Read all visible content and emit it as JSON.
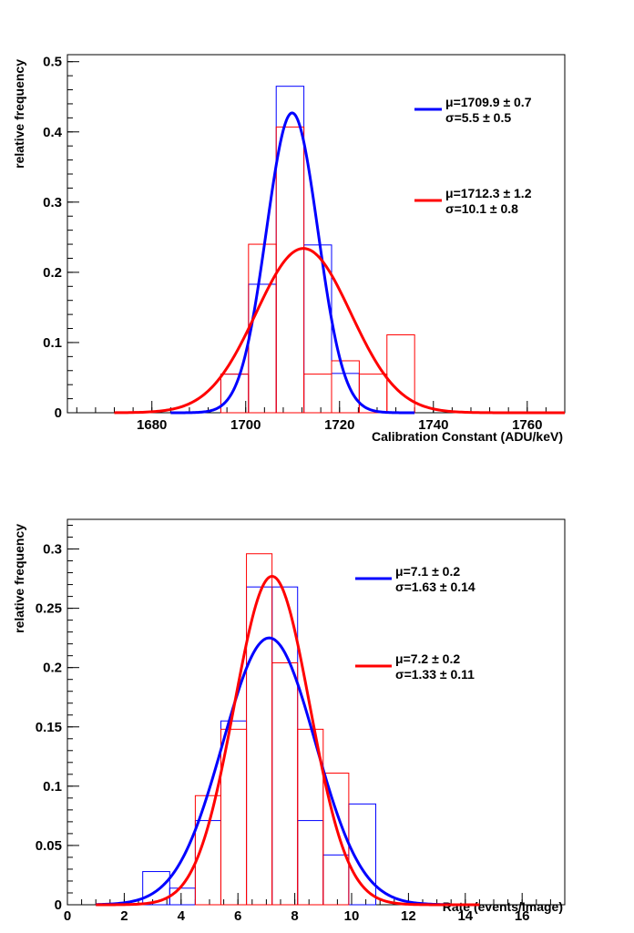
{
  "chart_data": [
    {
      "type": "histogram",
      "xlabel": "Calibration Constant (ADU/keV)",
      "ylabel": "relative frequency",
      "xlim": [
        1662,
        1768
      ],
      "ylim": [
        0,
        0.51
      ],
      "x_ticks": [
        1680,
        1700,
        1720,
        1740,
        1760
      ],
      "y_ticks": [
        {
          "v": 0,
          "label": "0"
        },
        {
          "v": 0.1,
          "label": "0.1"
        },
        {
          "v": 0.2,
          "label": "0.2"
        },
        {
          "v": 0.3,
          "label": "0.3"
        },
        {
          "v": 0.4,
          "label": "0.4"
        },
        {
          "v": 0.5,
          "label": "0.5"
        }
      ],
      "histograms": [
        {
          "name": "blue",
          "color": "#0000ff",
          "bins": [
            [
              1694.7,
              1700.6,
              0.055
            ],
            [
              1700.6,
              1706.5,
              0.183
            ],
            [
              1706.5,
              1712.4,
              0.465
            ],
            [
              1712.4,
              1718.3,
              0.239
            ],
            [
              1718.3,
              1724.2,
              0.056
            ],
            [
              1724.2,
              1730.1,
              0
            ]
          ]
        },
        {
          "name": "red",
          "color": "#ff0000",
          "bins": [
            [
              1694.7,
              1700.6,
              0.055
            ],
            [
              1700.6,
              1706.5,
              0.24
            ],
            [
              1706.5,
              1712.4,
              0.407
            ],
            [
              1712.4,
              1718.3,
              0.055
            ],
            [
              1718.3,
              1724.2,
              0.074
            ],
            [
              1724.2,
              1730.1,
              0.055
            ],
            [
              1730.1,
              1736.0,
              0.111
            ],
            [
              1736.0,
              1741.9,
              0
            ]
          ]
        }
      ],
      "fits": [
        {
          "name": "blue",
          "color": "#0000ff",
          "mu": 1709.9,
          "sigma": 5.5,
          "amp": 0.427,
          "range": [
            1684,
            1736
          ]
        },
        {
          "name": "red",
          "color": "#ff0000",
          "mu": 1712.3,
          "sigma": 10.1,
          "amp": 0.234,
          "range": [
            1672,
            1768
          ]
        }
      ],
      "legend": [
        {
          "color": "#0000ff",
          "line1": "μ=1709.9 ± 0.7",
          "line2": "σ=5.5 ± 0.5"
        },
        {
          "color": "#ff0000",
          "line1": "μ=1712.3 ± 1.2",
          "line2": "σ=10.1 ± 0.8"
        }
      ]
    },
    {
      "type": "histogram",
      "xlabel": "Rate (events/Image)",
      "ylabel": "relative frequency",
      "xlim": [
        0,
        17.5
      ],
      "ylim": [
        0,
        0.325
      ],
      "x_ticks": [
        0,
        2,
        4,
        6,
        8,
        10,
        12,
        14,
        16
      ],
      "y_ticks": [
        {
          "v": 0,
          "label": "0"
        },
        {
          "v": 0.05,
          "label": "0.05"
        },
        {
          "v": 0.1,
          "label": "0.1"
        },
        {
          "v": 0.15,
          "label": "0.15"
        },
        {
          "v": 0.2,
          "label": "0.2"
        },
        {
          "v": 0.25,
          "label": "0.25"
        },
        {
          "v": 0.3,
          "label": "0.3"
        }
      ],
      "histograms": [
        {
          "name": "blue",
          "color": "#0000ff",
          "bins": [
            [
              2.65,
              3.6,
              0.028
            ],
            [
              3.6,
              4.5,
              0.014
            ],
            [
              4.5,
              5.4,
              0.071
            ],
            [
              5.4,
              6.3,
              0.155
            ],
            [
              6.3,
              7.2,
              0.268
            ],
            [
              7.2,
              8.1,
              0.268
            ],
            [
              8.1,
              9.0,
              0.071
            ],
            [
              9.0,
              9.9,
              0.042
            ],
            [
              9.9,
              10.85,
              0.085
            ],
            [
              10.85,
              11.8,
              0
            ]
          ]
        },
        {
          "name": "red",
          "color": "#ff0000",
          "bins": [
            [
              4.5,
              5.4,
              0.092
            ],
            [
              5.4,
              6.3,
              0.148
            ],
            [
              6.3,
              7.2,
              0.296
            ],
            [
              7.2,
              8.1,
              0.204
            ],
            [
              8.1,
              9.0,
              0.148
            ],
            [
              9.0,
              9.9,
              0.111
            ],
            [
              9.9,
              10.85,
              0
            ]
          ]
        }
      ],
      "fits": [
        {
          "name": "blue",
          "color": "#0000ff",
          "mu": 7.1,
          "sigma": 1.63,
          "amp": 0.225,
          "range": [
            1.0,
            13.5
          ]
        },
        {
          "name": "red",
          "color": "#ff0000",
          "mu": 7.2,
          "sigma": 1.33,
          "amp": 0.277,
          "range": [
            1.0,
            14.5
          ]
        }
      ],
      "legend": [
        {
          "color": "#0000ff",
          "line1": "μ=7.1 ± 0.2",
          "line2": "σ=1.63 ± 0.14"
        },
        {
          "color": "#ff0000",
          "line1": "μ=7.2 ± 0.2",
          "line2": "σ=1.33 ± 0.11"
        }
      ]
    }
  ]
}
